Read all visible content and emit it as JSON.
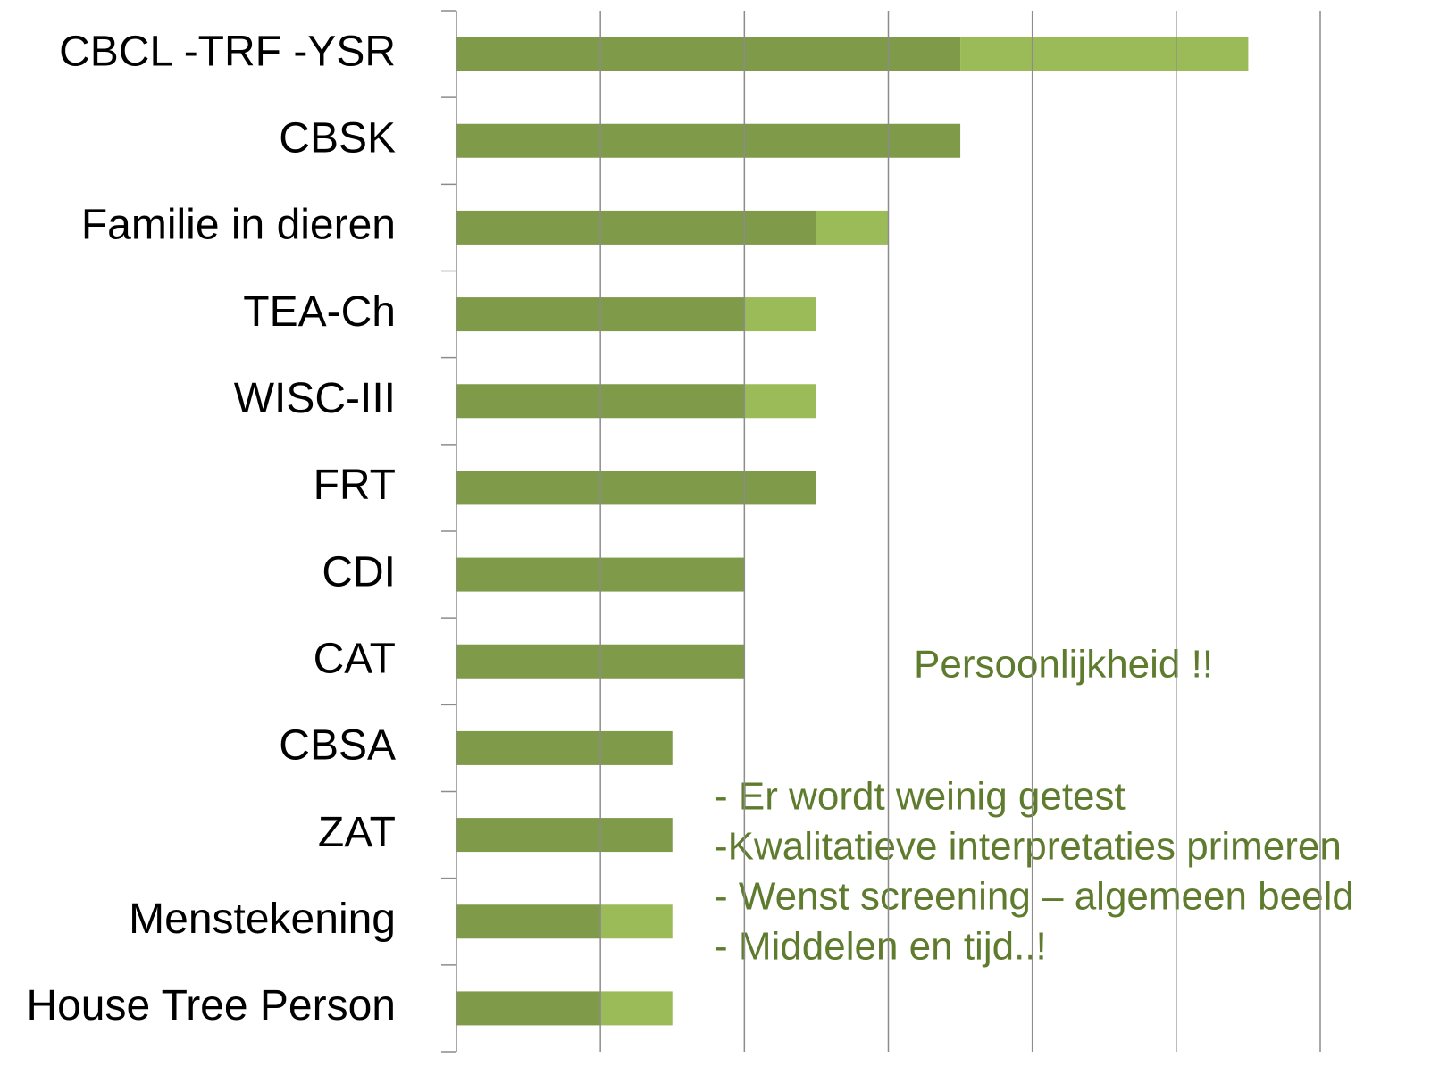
{
  "chart_data": {
    "type": "stacked-barh",
    "categories": [
      "CBCL -TRF -YSR",
      "CBSK",
      "Familie in dieren",
      "TEA-Ch",
      "WISC-III",
      "FRT",
      "CDI",
      "CAT",
      "CBSA",
      "ZAT",
      "Menstekening",
      "House Tree Person"
    ],
    "series": [
      {
        "color": "#7f9a48",
        "values": [
          3.5,
          3.5,
          2.5,
          2,
          2,
          2.5,
          2,
          2,
          1.5,
          1.5,
          1,
          1
        ]
      },
      {
        "color": "#9bbb59",
        "values": [
          2,
          null,
          0.5,
          0.5,
          0.5,
          null,
          null,
          null,
          null,
          null,
          0.5,
          0.5
        ]
      }
    ],
    "xlim": [
      0,
      6
    ],
    "xticks": [
      0,
      1,
      2,
      3,
      4,
      5,
      6
    ],
    "grid": true,
    "annotations": [
      "Persoonlijkheid !!",
      "- Er wordt weinig getest",
      "-Kwalitatieve interpretaties primeren",
      "- Wenst screening – algemeen beeld",
      "- Middelen en tijd..!"
    ]
  }
}
